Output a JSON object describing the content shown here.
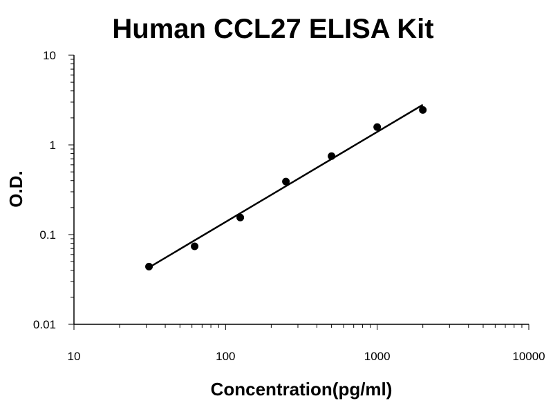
{
  "chart_data": {
    "type": "scatter",
    "title": "Human CCL27 ELISA Kit",
    "xlabel": "Concentration(pg/ml)",
    "ylabel": "O.D.",
    "x_scale": "log",
    "y_scale": "log",
    "xlim": [
      10,
      10000
    ],
    "ylim": [
      0.01,
      10
    ],
    "x_ticks": [
      10,
      100,
      1000,
      10000
    ],
    "x_tick_labels": [
      "10",
      "100",
      "1000",
      "10000"
    ],
    "y_ticks": [
      0.01,
      0.1,
      1,
      10
    ],
    "y_tick_labels": [
      "0.01",
      "0.1",
      "1",
      "10"
    ],
    "grid": false,
    "legend": "none",
    "colors": {
      "points": "#000000",
      "line": "#000000",
      "axes": "#000000"
    },
    "series": [
      {
        "points": [
          {
            "x": 31.25,
            "y": 0.044
          },
          {
            "x": 62.5,
            "y": 0.074
          },
          {
            "x": 125,
            "y": 0.155
          },
          {
            "x": 250,
            "y": 0.39
          },
          {
            "x": 500,
            "y": 0.75
          },
          {
            "x": 1000,
            "y": 1.58
          },
          {
            "x": 2000,
            "y": 2.45
          }
        ]
      }
    ],
    "fit_line": {
      "x": [
        31.25,
        2000
      ],
      "y": [
        0.043,
        2.8
      ]
    }
  }
}
